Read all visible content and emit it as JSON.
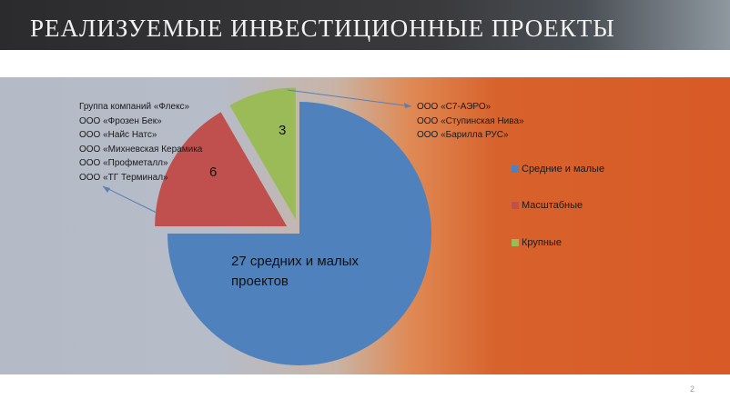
{
  "slide": {
    "title": "РЕАЛИЗУЕМЫЕ ИНВЕСТИЦИОННЫЕ ПРОЕКТЫ",
    "page_number": "2"
  },
  "left_note": [
    "Группа компаний «Флекс»",
    "ООО «Фрозен Бек»",
    "ООО «Найс Натс»",
    "ООО «Михневская Керамика",
    "ООО «Профметалл»",
    "ООО «ТГ Терминал»"
  ],
  "right_note": [
    "ООО «С7-АЭРО»",
    "ООО «Ступинская Нива»",
    "ООО «Барилла РУС»"
  ],
  "chart_data": {
    "type": "pie",
    "slices": [
      {
        "label": "Средние и малые",
        "value": 27,
        "color": "#4f81bd",
        "data_label": "27 средних и малых проектов"
      },
      {
        "label": "Масштабные",
        "value": 6,
        "color": "#c0504d",
        "data_label": "6"
      },
      {
        "label": "Крупные",
        "value": 3,
        "color": "#9bbb59",
        "data_label": "3"
      }
    ],
    "legend_position": "right"
  }
}
